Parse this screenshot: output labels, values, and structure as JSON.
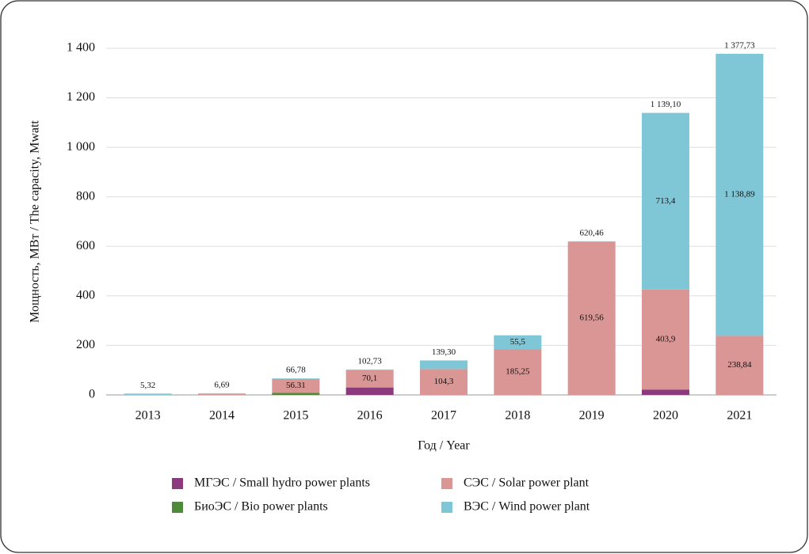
{
  "chart_data": {
    "type": "stacked-bar",
    "y_label": "Мощность, МВт / The capacity, Mwatt",
    "x_label": "Год / Year",
    "categories": [
      "2013",
      "2014",
      "2015",
      "2016",
      "2017",
      "2018",
      "2019",
      "2020",
      "2021"
    ],
    "series": [
      {
        "name": "МГЭС / Small hydro power plants",
        "color": "#8b3a7e",
        "values": [
          0,
          0,
          0,
          30,
          0,
          0,
          0,
          21.8,
          0
        ],
        "value_labels": [
          null,
          null,
          null,
          null,
          null,
          null,
          null,
          null,
          null
        ]
      },
      {
        "name": "БиоЭС / Bio power plants",
        "color": "#4f8a3c",
        "values": [
          0,
          0,
          8,
          0,
          0,
          0,
          0,
          0,
          0
        ],
        "value_labels": [
          null,
          null,
          null,
          null,
          null,
          null,
          null,
          null,
          null
        ]
      },
      {
        "name": "СЭС / Solar power plant",
        "color": "#d99694",
        "values": [
          0,
          4,
          56.31,
          70.1,
          104.3,
          185.25,
          619.56,
          403.9,
          238.84
        ],
        "value_labels": [
          null,
          null,
          "56.31",
          "70,1",
          "104,3",
          "185,25",
          "619,56",
          "403,9",
          "238,84"
        ]
      },
      {
        "name": "ВЭС / Wind power plant",
        "color": "#7fc6d6",
        "values": [
          5.32,
          2.69,
          2.47,
          2.63,
          35,
          55.5,
          0.9,
          713.4,
          1138.89
        ],
        "value_labels": [
          null,
          null,
          null,
          null,
          null,
          "55,5",
          null,
          "713,4",
          "1 138,89"
        ]
      }
    ],
    "totals": {
      "values": [
        5.32,
        6.69,
        66.78,
        102.73,
        139.3,
        null,
        620.46,
        1139.1,
        1377.73
      ],
      "value_labels": [
        "5,32",
        "6,69",
        "66,78",
        "102,73",
        "139,30",
        null,
        "620,46",
        "1 139,10",
        "1 377,73"
      ]
    },
    "ylim": [
      0,
      1400
    ],
    "yticks": [
      0,
      200,
      400,
      600,
      800,
      {
        "value": 1000,
        "label": "1 000"
      },
      {
        "value": 1200,
        "label": "1 200"
      },
      {
        "value": 1400,
        "label": "1 400"
      }
    ],
    "grid": true
  }
}
